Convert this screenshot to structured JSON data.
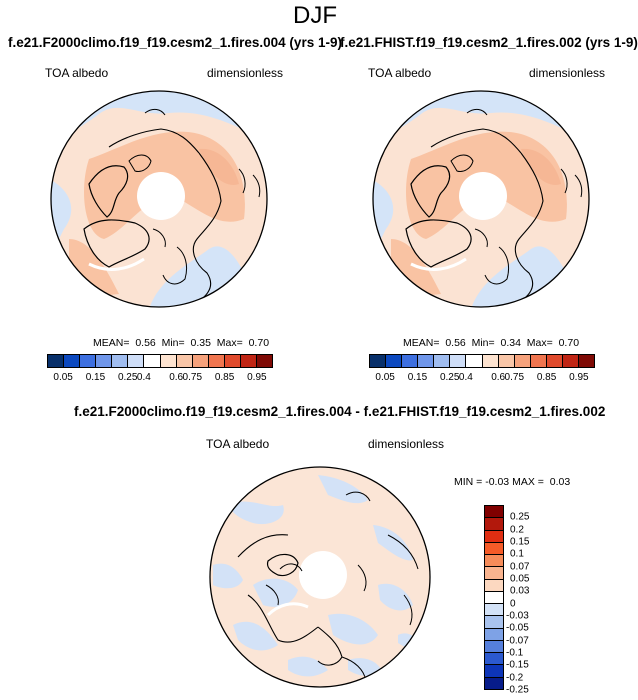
{
  "season": "DJF",
  "panels": [
    {
      "title": "f.e21.F2000climo.f19_f19.cesm2_1.fires.004 (yrs 1-9)",
      "variable": "TOA albedo",
      "units": "dimensionless",
      "stats": {
        "mean_label": "MEAN=",
        "mean": "0.56",
        "min_label": "Min=",
        "min": "0.35",
        "max_label": "Max=",
        "max": "0.70"
      }
    },
    {
      "title": "f.e21.FHIST.f19_f19.cesm2_1.fires.002 (yrs 1-9)",
      "variable": "TOA albedo",
      "units": "dimensionless",
      "stats": {
        "mean_label": "MEAN=",
        "mean": "0.56",
        "min_label": "Min=",
        "min": "0.34",
        "max_label": "Max=",
        "max": "0.70"
      }
    }
  ],
  "diff": {
    "title": "f.e21.F2000climo.f19_f19.cesm2_1.fires.004 - f.e21.FHIST.f19_f19.cesm2_1.fires.002",
    "variable": "TOA albedo",
    "units": "dimensionless",
    "stats": {
      "min_label": "MIN =",
      "min": "-0.03",
      "max_label": "MAX =",
      "max": "0.03"
    }
  },
  "colorbar_abs": {
    "colors": [
      "#08306b",
      "#0c49c0",
      "#3d6fe0",
      "#6f96ea",
      "#a0bdf0",
      "#cfdef8",
      "#ffffff",
      "#fde3d0",
      "#f9c6a8",
      "#f6a27c",
      "#f0754f",
      "#e04a2c",
      "#c02514",
      "#7f0a05"
    ],
    "labels": [
      "0.05",
      "0.15",
      "0.25",
      "0.4",
      "0.6",
      "0.75",
      "0.85",
      "0.95"
    ]
  },
  "colorbar_diff": {
    "colors": [
      "#800000",
      "#b2180c",
      "#e02e12",
      "#f55b28",
      "#f68c5a",
      "#f9b48f",
      "#fcd8c0",
      "#ffffff",
      "#d3e2f7",
      "#a9c3ee",
      "#7ea2e6",
      "#557fdc",
      "#2b59cf",
      "#0d35b8",
      "#071c8a"
    ],
    "labels": [
      "0.25",
      "0.2",
      "0.15",
      "0.1",
      "0.07",
      "0.05",
      "0.03",
      "0",
      "-0.03",
      "-0.05",
      "-0.07",
      "-0.1",
      "-0.15",
      "-0.2",
      "-0.25"
    ]
  }
}
